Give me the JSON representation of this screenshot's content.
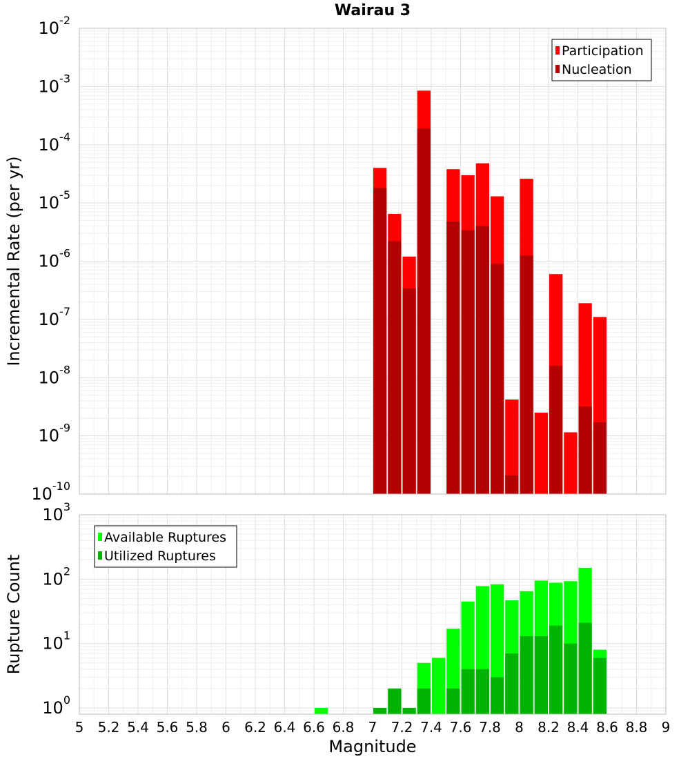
{
  "chart_data": [
    {
      "type": "bar",
      "title": "Wairau 3",
      "xlabel": "",
      "ylabel": "Incremental Rate (per yr)",
      "yscale": "log",
      "ylim": [
        1e-10,
        0.01
      ],
      "xlim": [
        5,
        9
      ],
      "bin_width": 0.1,
      "grid": true,
      "legend_position": "top-right",
      "ytick_labels": [
        {
          "base": "10",
          "exp": "-10"
        },
        {
          "base": "10",
          "exp": "-9"
        },
        {
          "base": "10",
          "exp": "-8"
        },
        {
          "base": "10",
          "exp": "-7"
        },
        {
          "base": "10",
          "exp": "-6"
        },
        {
          "base": "10",
          "exp": "-5"
        },
        {
          "base": "10",
          "exp": "-4"
        },
        {
          "base": "10",
          "exp": "-3"
        },
        {
          "base": "10",
          "exp": "-2"
        }
      ],
      "x": [
        7.05,
        7.15,
        7.25,
        7.35,
        7.45,
        7.55,
        7.65,
        7.75,
        7.85,
        7.95,
        8.05,
        8.15,
        8.25,
        8.35,
        8.45,
        8.55
      ],
      "series": [
        {
          "name": "Participation",
          "color": "#ff0000",
          "values": [
            4e-05,
            6.5e-06,
            1.2e-06,
            0.00085,
            null,
            3.8e-05,
            3e-05,
            4.8e-05,
            1.3e-05,
            4.2e-09,
            2.6e-05,
            2.5e-09,
            6e-07,
            1.15e-09,
            1.9e-07,
            1.1e-07
          ]
        },
        {
          "name": "Nucleation",
          "color": "#b30000",
          "values": [
            1.8e-05,
            2.2e-06,
            3.4e-07,
            0.00019,
            null,
            4.8e-06,
            3.4e-06,
            4e-06,
            9e-07,
            2.1e-10,
            1.25e-06,
            null,
            1.6e-08,
            null,
            3.2e-09,
            1.7e-09
          ]
        }
      ]
    },
    {
      "type": "bar",
      "title": "",
      "xlabel": "Magnitude",
      "ylabel": "Rupture Count",
      "yscale": "log",
      "ylim": [
        0.8,
        1000
      ],
      "xlim": [
        5,
        9
      ],
      "bin_width": 0.1,
      "grid": true,
      "legend_position": "top-left",
      "ytick_labels": [
        {
          "base": "10",
          "exp": "0"
        },
        {
          "base": "10",
          "exp": "1"
        },
        {
          "base": "10",
          "exp": "2"
        },
        {
          "base": "10",
          "exp": "3"
        }
      ],
      "xtick_labels": [
        "5",
        "5.2",
        "5.4",
        "5.6",
        "5.8",
        "6",
        "6.2",
        "6.4",
        "6.6",
        "6.8",
        "7",
        "7.2",
        "7.4",
        "7.6",
        "7.8",
        "8",
        "8.2",
        "8.4",
        "8.6",
        "8.8",
        "9"
      ],
      "x": [
        6.65,
        7.05,
        7.15,
        7.25,
        7.35,
        7.45,
        7.55,
        7.65,
        7.75,
        7.85,
        7.95,
        8.05,
        8.15,
        8.25,
        8.35,
        8.45,
        8.55
      ],
      "series": [
        {
          "name": "Available Ruptures",
          "color": "#00ff00",
          "values": [
            1,
            1,
            2,
            1,
            5,
            6,
            17,
            45,
            78,
            83,
            47,
            65,
            95,
            88,
            93,
            150,
            8
          ]
        },
        {
          "name": "Utilized Ruptures",
          "color": "#00b300",
          "values": [
            null,
            1,
            2,
            1,
            2,
            null,
            2,
            4,
            4,
            3,
            7,
            13,
            13,
            19,
            10,
            21,
            6
          ]
        }
      ]
    }
  ]
}
